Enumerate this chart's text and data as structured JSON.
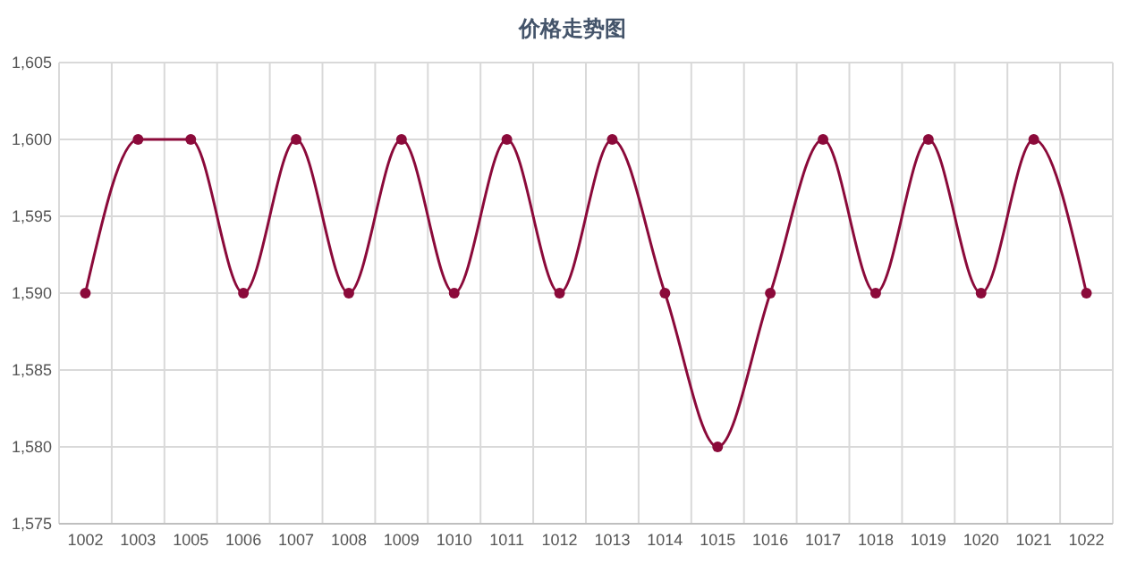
{
  "chart_data": {
    "type": "line",
    "title": "价格走势图",
    "categories": [
      "1002",
      "1003",
      "1005",
      "1006",
      "1007",
      "1008",
      "1009",
      "1010",
      "1011",
      "1012",
      "1013",
      "1014",
      "1015",
      "1016",
      "1017",
      "1018",
      "1019",
      "1020",
      "1021",
      "1022"
    ],
    "series": [
      {
        "color": "#8b0a3a",
        "values": [
          1590,
          1600,
          1600,
          1590,
          1600,
          1590,
          1600,
          1590,
          1600,
          1590,
          1600,
          1590,
          1580,
          1590,
          1600,
          1590,
          1600,
          1590,
          1600,
          1590
        ]
      }
    ],
    "ylim": [
      1575,
      1605
    ],
    "yticks": [
      {
        "value": 1575,
        "label": "1,575"
      },
      {
        "value": 1580,
        "label": "1,580"
      },
      {
        "value": 1585,
        "label": "1,585"
      },
      {
        "value": 1590,
        "label": "1,590"
      },
      {
        "value": 1595,
        "label": "1,595"
      },
      {
        "value": 1600,
        "label": "1,600"
      },
      {
        "value": 1605,
        "label": "1,605"
      }
    ],
    "grid": true,
    "marker": "circle",
    "line_style": "solid"
  }
}
